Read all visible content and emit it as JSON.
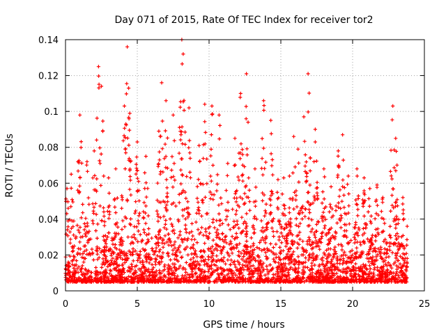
{
  "chart_data": {
    "type": "scatter",
    "title": "Day 071 of 2015, Rate Of TEC Index for receiver tor2",
    "xlabel": "GPS time / hours",
    "ylabel": "ROTI / TECUs",
    "xlim": [
      0,
      25
    ],
    "ylim": [
      0,
      0.14
    ],
    "xticks": [
      0,
      5,
      10,
      15,
      20,
      25
    ],
    "xtick_labels": [
      "0",
      "5",
      "10",
      "15",
      "20",
      "25"
    ],
    "yticks": [
      0,
      0.02,
      0.04,
      0.06,
      0.08,
      0.1,
      0.12,
      0.14
    ],
    "ytick_labels": [
      "0",
      "0.02",
      "0.04",
      "0.06",
      "0.08",
      "0.1",
      "0.12",
      "0.14"
    ],
    "grid": true,
    "marker": "plus",
    "series_color": "#ff0000",
    "series": [
      {
        "name": "ROTI",
        "data_range": [
          0,
          23.8
        ],
        "peaks": [
          [
            0.1,
            0.057
          ],
          [
            0.4,
            0.065
          ],
          [
            1.0,
            0.098
          ],
          [
            1.5,
            0.072
          ],
          [
            2.0,
            0.078
          ],
          [
            2.3,
            0.125
          ],
          [
            2.5,
            0.114
          ],
          [
            3.0,
            0.063
          ],
          [
            3.5,
            0.068
          ],
          [
            4.1,
            0.103
          ],
          [
            4.3,
            0.136
          ],
          [
            4.4,
            0.113
          ],
          [
            5.0,
            0.083
          ],
          [
            5.6,
            0.075
          ],
          [
            6.5,
            0.089
          ],
          [
            6.7,
            0.116
          ],
          [
            7.0,
            0.106
          ],
          [
            7.5,
            0.098
          ],
          [
            8.1,
            0.14
          ],
          [
            8.2,
            0.132
          ],
          [
            8.6,
            0.102
          ],
          [
            9.3,
            0.081
          ],
          [
            9.7,
            0.104
          ],
          [
            10.2,
            0.103
          ],
          [
            10.7,
            0.098
          ],
          [
            11.3,
            0.071
          ],
          [
            11.8,
            0.085
          ],
          [
            12.2,
            0.11
          ],
          [
            12.6,
            0.121
          ],
          [
            13.2,
            0.068
          ],
          [
            13.8,
            0.106
          ],
          [
            14.3,
            0.095
          ],
          [
            14.8,
            0.062
          ],
          [
            15.2,
            0.063
          ],
          [
            15.6,
            0.064
          ],
          [
            15.9,
            0.086
          ],
          [
            16.2,
            0.079
          ],
          [
            16.6,
            0.097
          ],
          [
            16.9,
            0.121
          ],
          [
            17.4,
            0.09
          ],
          [
            18.0,
            0.068
          ],
          [
            18.5,
            0.058
          ],
          [
            19.0,
            0.078
          ],
          [
            19.3,
            0.087
          ],
          [
            19.7,
            0.064
          ],
          [
            20.3,
            0.068
          ],
          [
            20.8,
            0.063
          ],
          [
            21.2,
            0.057
          ],
          [
            21.7,
            0.059
          ],
          [
            22.1,
            0.052
          ],
          [
            22.8,
            0.103
          ],
          [
            23.0,
            0.085
          ],
          [
            23.5,
            0.052
          ],
          [
            23.8,
            0.036
          ]
        ],
        "baseline": 0.005
      }
    ]
  }
}
